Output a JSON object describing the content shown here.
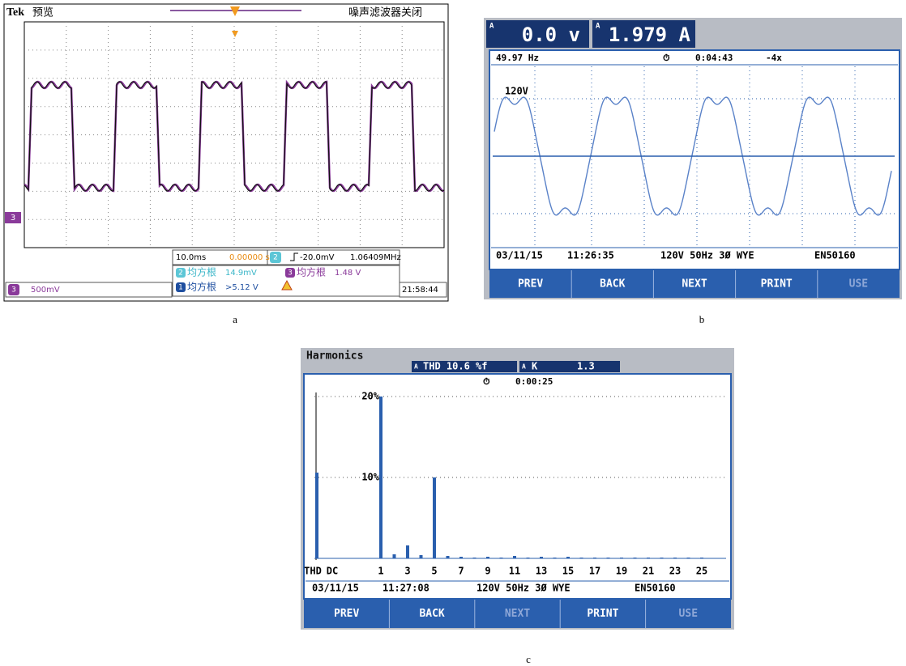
{
  "panel_a": {
    "caption": "a",
    "brand": "Tek",
    "mode": "预览",
    "filter": "噪声滤波器关闭",
    "channel_marker": "3",
    "timebase": "10.0ms",
    "delay": "0.00000 s",
    "trigger_channel": "2",
    "trigger_level": "-20.0mV",
    "frequency": "1.06409MHz",
    "meas": [
      {
        "channel": "2",
        "label": "均方根",
        "value": "14.9mV"
      },
      {
        "channel": "3",
        "label": "均方根",
        "value": "1.48 V"
      },
      {
        "channel": "1",
        "label": "均方根",
        "value": ">5.12 V"
      }
    ],
    "scale_channel": "3",
    "scale": "500mV",
    "clock": "21:58:44"
  },
  "panel_b": {
    "caption": "b",
    "phase_tag": "A",
    "voltage": "0.0 v",
    "current": "1.979 A",
    "frequency": "49.97 Hz",
    "timer": "0:04:43",
    "zoom": "-4x",
    "scale": "120V",
    "date": "03/11/15",
    "time": "11:26:35",
    "config": "120V  50Hz 3Ø WYE",
    "standard": "EN50160",
    "buttons": [
      "PREV",
      "BACK",
      "NEXT",
      "PRINT",
      "USE"
    ]
  },
  "panel_c": {
    "caption": "c",
    "title": "Harmonics",
    "phase_tag": "A",
    "thd": "THD 10.6 %f",
    "k_label": "K",
    "k_value": "1.3",
    "timer": "0:00:25",
    "ylim": [
      0,
      20
    ],
    "yticks": [
      {
        "value": 10,
        "label": "10%"
      },
      {
        "value": 20,
        "label": "20%"
      }
    ],
    "thd_bar": 10.6,
    "dc_bar": 0,
    "harmonics": [
      20,
      0.5,
      1.6,
      0.4,
      10,
      0.3,
      0.2,
      0.1,
      0.2,
      0.1,
      0.3,
      0.1,
      0.2,
      0.1,
      0.2,
      0.1,
      0.1,
      0.1,
      0.1,
      0.1,
      0.1,
      0.1,
      0.1,
      0.1,
      0.1
    ],
    "x_labels": [
      "THD",
      "DC",
      "1",
      "3",
      "5",
      "7",
      "9",
      "11",
      "13",
      "15",
      "17",
      "19",
      "21",
      "23",
      "25"
    ],
    "date": "03/11/15",
    "time": "11:27:08",
    "config": "120V  50Hz 3Ø WYE",
    "standard": "EN50160",
    "buttons": [
      "PREV",
      "BACK",
      "NEXT",
      "PRINT",
      "USE"
    ]
  }
}
